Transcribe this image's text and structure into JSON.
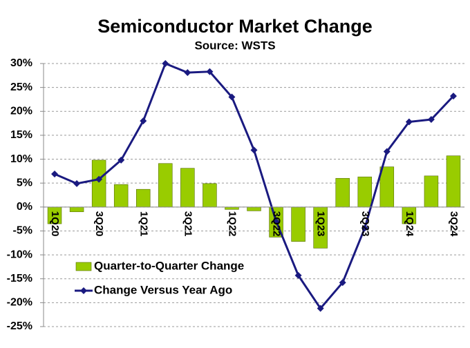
{
  "chart_data": {
    "type": "bar_line",
    "title": "Semiconductor Market Change",
    "subtitle": "Source: WSTS",
    "categories": [
      "1Q20",
      null,
      "3Q20",
      null,
      "1Q21",
      null,
      "3Q21",
      null,
      "1Q22",
      null,
      "3Q22",
      null,
      "1Q23",
      null,
      "3Q23",
      null,
      "1Q24",
      null,
      "3Q24"
    ],
    "series": [
      {
        "name": "Quarter-to-Quarter Change",
        "type": "bar",
        "color": "#99cc00",
        "values": [
          -3.5,
          -1,
          9.8,
          4.7,
          3.7,
          9.1,
          8.1,
          4.9,
          -0.5,
          -0.8,
          -6.3,
          -7.2,
          -8.6,
          6.0,
          6.3,
          8.4,
          -3.5,
          6.5,
          10.7
        ]
      },
      {
        "name": "Change Versus Year Ago",
        "type": "line",
        "color": "#1a1a80",
        "values": [
          6.9,
          4.9,
          5.8,
          9.8,
          18,
          30,
          28.1,
          28.3,
          23,
          11.9,
          -3,
          -14.3,
          -21.2,
          -15.8,
          -4.4,
          11.6,
          17.8,
          18.3,
          23.2
        ]
      }
    ],
    "ylim": [
      -25,
      30
    ],
    "yticks": [
      {
        "value": -25,
        "label": "-25%"
      },
      {
        "value": -20,
        "label": "-20%"
      },
      {
        "value": -15,
        "label": "-15%"
      },
      {
        "value": -10,
        "label": "-10%"
      },
      {
        "value": -5,
        "label": "-5%"
      },
      {
        "value": 0,
        "label": "0%"
      },
      {
        "value": 5,
        "label": "5%"
      },
      {
        "value": 10,
        "label": "10%"
      },
      {
        "value": 15,
        "label": "15%"
      },
      {
        "value": 20,
        "label": "20%"
      },
      {
        "value": 25,
        "label": "25%"
      },
      {
        "value": 30,
        "label": "30%"
      }
    ],
    "grid": true
  }
}
